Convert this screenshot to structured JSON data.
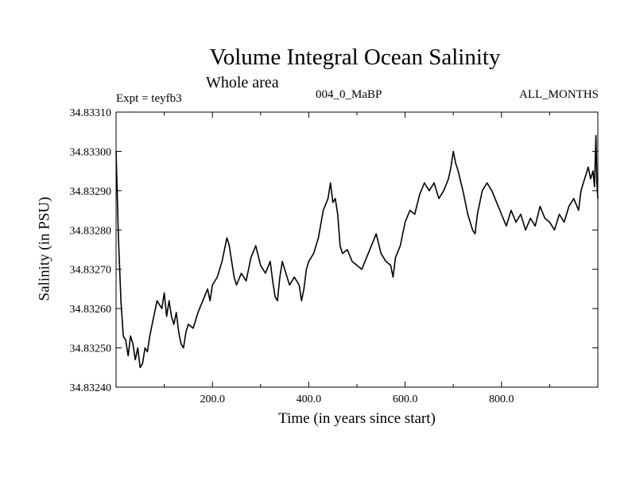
{
  "chart_data": {
    "type": "line",
    "title": "Volume Integral Ocean Salinity",
    "subtitle": "Whole area",
    "annotations": {
      "left": "Expt = teyfb3",
      "center": "004_0_MaBP",
      "right": "ALL_MONTHS"
    },
    "xlabel": "Time (in years since start)",
    "ylabel": "Salinity (in PSU)",
    "xlim": [
      0,
      1000
    ],
    "ylim": [
      34.8324,
      34.8331
    ],
    "x_ticks": [
      200,
      400,
      600,
      800
    ],
    "x_tick_labels": [
      "200.0",
      "400.0",
      "600.0",
      "800.0"
    ],
    "y_ticks": [
      34.8324,
      34.8325,
      34.8326,
      34.8327,
      34.8328,
      34.8329,
      34.833,
      34.8331
    ],
    "y_tick_labels": [
      "34.83240",
      "34.83250",
      "34.83260",
      "34.83270",
      "34.83280",
      "34.83290",
      "34.83300",
      "34.83310"
    ],
    "grid": false,
    "series": [
      {
        "name": "Salinity",
        "color": "#000000",
        "x": [
          0,
          5,
          10,
          15,
          20,
          25,
          30,
          35,
          40,
          45,
          50,
          55,
          60,
          65,
          70,
          75,
          80,
          85,
          90,
          95,
          100,
          105,
          110,
          115,
          120,
          125,
          130,
          135,
          140,
          145,
          150,
          160,
          170,
          180,
          190,
          195,
          200,
          210,
          220,
          230,
          235,
          240,
          245,
          250,
          260,
          270,
          280,
          290,
          300,
          310,
          320,
          325,
          330,
          335,
          340,
          345,
          350,
          360,
          370,
          380,
          385,
          390,
          395,
          400,
          410,
          420,
          430,
          440,
          445,
          450,
          455,
          460,
          465,
          470,
          480,
          490,
          500,
          510,
          520,
          530,
          540,
          550,
          560,
          570,
          575,
          580,
          590,
          600,
          610,
          620,
          630,
          640,
          650,
          660,
          670,
          680,
          690,
          695,
          700,
          705,
          710,
          720,
          730,
          740,
          745,
          750,
          760,
          770,
          780,
          790,
          800,
          810,
          820,
          830,
          840,
          850,
          860,
          870,
          880,
          890,
          900,
          910,
          920,
          930,
          940,
          950,
          960,
          965,
          970,
          975,
          980,
          985,
          990,
          993,
          996,
          998,
          1000
        ],
        "values": [
          34.833,
          34.83278,
          34.83262,
          34.83253,
          34.83252,
          34.83248,
          34.83253,
          34.83251,
          34.83247,
          34.8325,
          34.83245,
          34.83246,
          34.8325,
          34.83249,
          34.83253,
          34.83256,
          34.83259,
          34.83262,
          34.83261,
          34.8326,
          34.83264,
          34.83258,
          34.83262,
          34.83258,
          34.83256,
          34.83259,
          34.83254,
          34.83251,
          34.8325,
          34.83254,
          34.83256,
          34.83255,
          34.83259,
          34.83262,
          34.83265,
          34.83262,
          34.83266,
          34.83268,
          34.83272,
          34.83278,
          34.83276,
          34.83272,
          34.83268,
          34.83266,
          34.83269,
          34.83267,
          34.83273,
          34.83276,
          34.83271,
          34.83269,
          34.83272,
          34.83267,
          34.83263,
          34.83262,
          34.83268,
          34.83272,
          34.8327,
          34.83266,
          34.83268,
          34.83266,
          34.83262,
          34.83265,
          34.8327,
          34.83272,
          34.83274,
          34.83278,
          34.83285,
          34.83288,
          34.83292,
          34.83287,
          34.83288,
          34.83284,
          34.83276,
          34.83274,
          34.83275,
          34.83272,
          34.83271,
          34.8327,
          34.83273,
          34.83276,
          34.83279,
          34.83274,
          34.83272,
          34.83271,
          34.83268,
          34.83273,
          34.83276,
          34.83282,
          34.83285,
          34.83284,
          34.83289,
          34.83292,
          34.8329,
          34.83292,
          34.83288,
          34.8329,
          34.83293,
          34.83296,
          34.833,
          34.83297,
          34.83295,
          34.8329,
          34.83284,
          34.8328,
          34.83279,
          34.83284,
          34.8329,
          34.83292,
          34.8329,
          34.83287,
          34.83284,
          34.83281,
          34.83285,
          34.83282,
          34.83284,
          34.8328,
          34.83283,
          34.83281,
          34.83286,
          34.83283,
          34.83282,
          34.8328,
          34.83284,
          34.83282,
          34.83286,
          34.83288,
          34.83285,
          34.8329,
          34.83292,
          34.83294,
          34.83296,
          34.83293,
          34.83295,
          34.83291,
          34.83304,
          34.83292,
          34.83288
        ]
      }
    ]
  }
}
